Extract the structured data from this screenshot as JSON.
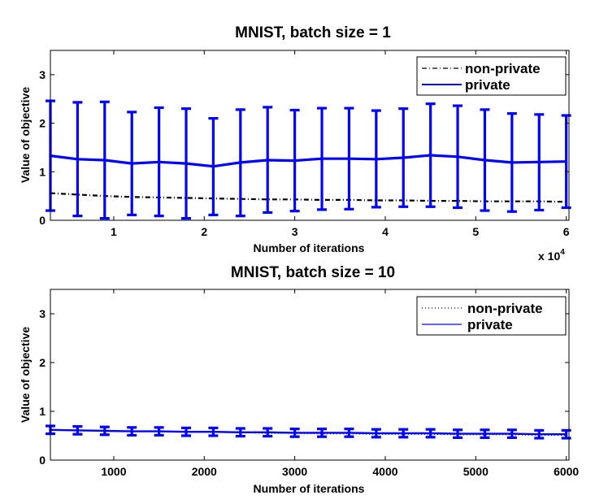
{
  "colors": {
    "private": "#0000ff",
    "non_private": "#000000",
    "axis": "#000000",
    "background": "#ffffff"
  },
  "chart_data": [
    {
      "type": "line",
      "title": "MNIST, batch size = 1",
      "xlabel": "Number of iterations",
      "ylabel": "Value of objective",
      "x_multiplier_label": {
        "base": "x 10",
        "exponent": "4"
      },
      "xlim": [
        3000,
        60300
      ],
      "ylim": [
        0,
        3.5
      ],
      "x_ticks": [
        10000,
        20000,
        30000,
        40000,
        50000,
        60000
      ],
      "x_tick_labels": [
        "1",
        "2",
        "3",
        "4",
        "5",
        "6"
      ],
      "y_ticks": [
        0,
        1,
        2,
        3
      ],
      "y_tick_labels": [
        "0",
        "1",
        "2",
        "3"
      ],
      "grid": false,
      "legend_position": "top-right",
      "series": [
        {
          "name": "non-private",
          "style": "dash-dot",
          "x": [
            3000,
            6000,
            9000,
            12000,
            15000,
            18000,
            21000,
            24000,
            27000,
            30000,
            33000,
            36000,
            39000,
            42000,
            45000,
            48000,
            51000,
            54000,
            57000,
            60000
          ],
          "y": [
            0.56,
            0.53,
            0.5,
            0.48,
            0.47,
            0.46,
            0.45,
            0.44,
            0.43,
            0.43,
            0.42,
            0.42,
            0.41,
            0.41,
            0.4,
            0.4,
            0.39,
            0.39,
            0.39,
            0.38
          ]
        },
        {
          "name": "private",
          "style": "solid",
          "x": [
            3000,
            6000,
            9000,
            12000,
            15000,
            18000,
            21000,
            24000,
            27000,
            30000,
            33000,
            36000,
            39000,
            42000,
            45000,
            48000,
            51000,
            54000,
            57000,
            60000
          ],
          "y": [
            1.33,
            1.26,
            1.24,
            1.17,
            1.2,
            1.17,
            1.11,
            1.19,
            1.24,
            1.23,
            1.27,
            1.27,
            1.26,
            1.29,
            1.34,
            1.31,
            1.24,
            1.19,
            1.2,
            1.21
          ],
          "error_low": [
            0.2,
            0.09,
            0.04,
            0.11,
            0.09,
            0.04,
            0.11,
            0.09,
            0.16,
            0.19,
            0.22,
            0.23,
            0.27,
            0.28,
            0.28,
            0.26,
            0.2,
            0.18,
            0.21,
            0.26
          ],
          "error_high": [
            2.46,
            2.43,
            2.44,
            2.23,
            2.32,
            2.3,
            2.1,
            2.28,
            2.33,
            2.27,
            2.31,
            2.31,
            2.26,
            2.3,
            2.4,
            2.36,
            2.28,
            2.2,
            2.18,
            2.16
          ]
        }
      ]
    },
    {
      "type": "line",
      "title": "MNIST, batch size = 10",
      "xlabel": "Number of iterations",
      "ylabel": "Value of objective",
      "xlim": [
        300,
        6030
      ],
      "ylim": [
        0,
        3.5
      ],
      "x_ticks": [
        1000,
        2000,
        3000,
        4000,
        5000,
        6000
      ],
      "x_tick_labels": [
        "1000",
        "2000",
        "3000",
        "4000",
        "5000",
        "6000"
      ],
      "y_ticks": [
        0,
        1,
        2,
        3
      ],
      "y_tick_labels": [
        "0",
        "1",
        "2",
        "3"
      ],
      "grid": false,
      "legend_position": "top-right",
      "series": [
        {
          "name": "non-private",
          "style": "dotted",
          "x": [
            300,
            600,
            900,
            1200,
            1500,
            1800,
            2100,
            2400,
            2700,
            3000,
            3300,
            3600,
            3900,
            4200,
            4500,
            4800,
            5100,
            5400,
            5700,
            6000
          ],
          "y": [
            0.63,
            0.61,
            0.6,
            0.59,
            0.58,
            0.57,
            0.57,
            0.56,
            0.55,
            0.55,
            0.54,
            0.54,
            0.53,
            0.53,
            0.53,
            0.52,
            0.52,
            0.52,
            0.51,
            0.51
          ]
        },
        {
          "name": "private",
          "style": "solid",
          "x": [
            300,
            600,
            900,
            1200,
            1500,
            1800,
            2100,
            2400,
            2700,
            3000,
            3300,
            3600,
            3900,
            4200,
            4500,
            4800,
            5100,
            5400,
            5700,
            6000
          ],
          "y": [
            0.62,
            0.61,
            0.6,
            0.59,
            0.59,
            0.58,
            0.58,
            0.57,
            0.57,
            0.56,
            0.56,
            0.56,
            0.55,
            0.55,
            0.55,
            0.54,
            0.54,
            0.54,
            0.53,
            0.53
          ],
          "error_low": [
            0.54,
            0.53,
            0.52,
            0.51,
            0.51,
            0.5,
            0.5,
            0.49,
            0.49,
            0.48,
            0.48,
            0.48,
            0.47,
            0.47,
            0.47,
            0.46,
            0.46,
            0.46,
            0.45,
            0.45
          ],
          "error_high": [
            0.7,
            0.69,
            0.68,
            0.67,
            0.67,
            0.66,
            0.66,
            0.65,
            0.65,
            0.64,
            0.64,
            0.64,
            0.63,
            0.63,
            0.63,
            0.62,
            0.62,
            0.62,
            0.61,
            0.61
          ]
        }
      ]
    }
  ]
}
